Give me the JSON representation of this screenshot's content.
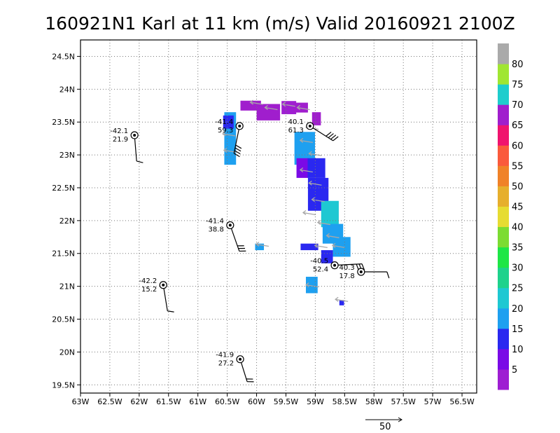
{
  "chart_data": {
    "type": "scatter",
    "title": "160921N1 Karl at 11 km (m/s) Valid 20160921  2100Z",
    "xlim": [
      -63,
      -56.25
    ],
    "ylim": [
      19.375,
      24.75
    ],
    "grid": true,
    "x_ticks": [
      {
        "v": -63,
        "label": "63W"
      },
      {
        "v": -62.5,
        "label": "62.5W"
      },
      {
        "v": -62,
        "label": "62W"
      },
      {
        "v": -61.5,
        "label": "61.5W"
      },
      {
        "v": -61,
        "label": "61W"
      },
      {
        "v": -60.5,
        "label": "60.5W"
      },
      {
        "v": -60,
        "label": "60W"
      },
      {
        "v": -59.5,
        "label": "59.5W"
      },
      {
        "v": -59,
        "label": "59W"
      },
      {
        "v": -58.5,
        "label": "58.5W"
      },
      {
        "v": -58,
        "label": "58W"
      },
      {
        "v": -57.5,
        "label": "57.5W"
      },
      {
        "v": -57,
        "label": "57W"
      },
      {
        "v": -56.5,
        "label": "56.5W"
      }
    ],
    "y_ticks": [
      {
        "v": 19.5,
        "label": "19.5N"
      },
      {
        "v": 20,
        "label": "20N"
      },
      {
        "v": 20.5,
        "label": "20.5N"
      },
      {
        "v": 21,
        "label": "21N"
      },
      {
        "v": 21.5,
        "label": "21.5N"
      },
      {
        "v": 22,
        "label": "22N"
      },
      {
        "v": 22.5,
        "label": "22.5N"
      },
      {
        "v": 23,
        "label": "23N"
      },
      {
        "v": 23.5,
        "label": "23.5N"
      },
      {
        "v": 24,
        "label": "24N"
      },
      {
        "v": 24.5,
        "label": "24.5N"
      }
    ],
    "colorbar": {
      "labels": [
        "5",
        "10",
        "15",
        "20",
        "25",
        "30",
        "35",
        "40",
        "45",
        "50",
        "55",
        "60",
        "65",
        "70",
        "75",
        "80"
      ],
      "colors": [
        "#9e1ed2",
        "#7a0ae6",
        "#2a28f0",
        "#1ea0f0",
        "#1ec8d2",
        "#1ed28c",
        "#1ee646",
        "#7cdc32",
        "#e6dc32",
        "#e6af2d",
        "#f08228",
        "#fa5a3c",
        "#f0146e",
        "#a01ecd",
        "#1ecdcd",
        "#a0e632",
        "#aaaaaa"
      ]
    },
    "observations": [
      {
        "name": "obs-1",
        "lon": -62.08,
        "lat": 23.3,
        "temp": "-42.1",
        "wind": "21.9",
        "stem": [
          3,
          37
        ]
      },
      {
        "name": "obs-2",
        "lon": -60.29,
        "lat": 23.44,
        "temp": "-41.4",
        "wind": "59.3",
        "stem": [
          -8,
          39
        ]
      },
      {
        "name": "obs-3",
        "lon": -59.09,
        "lat": 23.44,
        "temp": "40.1",
        "wind": "61.3",
        "stem": [
          33,
          21
        ]
      },
      {
        "name": "obs-4",
        "lon": -60.45,
        "lat": 21.93,
        "temp": "-41.4",
        "wind": "38.8",
        "stem": [
          13,
          37
        ]
      },
      {
        "name": "obs-5",
        "lon": -61.59,
        "lat": 21.02,
        "temp": "-42.2",
        "wind": "15.2",
        "stem": [
          6,
          37
        ]
      },
      {
        "name": "obs-6",
        "lon": -58.67,
        "lat": 21.32,
        "temp": "-40.5",
        "wind": "52.4",
        "stem": [
          39,
          -2
        ]
      },
      {
        "name": "obs-7",
        "lon": -58.22,
        "lat": 21.22,
        "temp": "40.3",
        "wind": "17.8",
        "stem": [
          37,
          0
        ]
      },
      {
        "name": "obs-8",
        "lon": -60.28,
        "lat": 19.89,
        "temp": "-41.9",
        "wind": "27.2",
        "stem": [
          10,
          32
        ]
      }
    ],
    "wind_cells": [
      {
        "lon": -60.1,
        "lat": 23.75,
        "w": 0.35,
        "h": 0.15,
        "c": 13
      },
      {
        "lon": -59.8,
        "lat": 23.65,
        "w": 0.4,
        "h": 0.25,
        "c": 13
      },
      {
        "lon": -59.45,
        "lat": 23.72,
        "w": 0.25,
        "h": 0.2,
        "c": 0
      },
      {
        "lon": -59.25,
        "lat": 23.72,
        "w": 0.25,
        "h": 0.15,
        "c": 13
      },
      {
        "lon": -58.98,
        "lat": 23.55,
        "w": 0.15,
        "h": 0.2,
        "c": 13
      },
      {
        "lon": -59.18,
        "lat": 23.1,
        "w": 0.35,
        "h": 0.5,
        "c": 3
      },
      {
        "lon": -59.22,
        "lat": 22.8,
        "w": 0.2,
        "h": 0.3,
        "c": 1
      },
      {
        "lon": -58.98,
        "lat": 22.8,
        "w": 0.3,
        "h": 0.3,
        "c": 2
      },
      {
        "lon": -58.95,
        "lat": 22.4,
        "w": 0.35,
        "h": 0.5,
        "c": 2
      },
      {
        "lon": -58.75,
        "lat": 22.1,
        "w": 0.3,
        "h": 0.4,
        "c": 4
      },
      {
        "lon": -58.7,
        "lat": 21.8,
        "w": 0.35,
        "h": 0.3,
        "c": 3
      },
      {
        "lon": -58.55,
        "lat": 21.6,
        "w": 0.3,
        "h": 0.3,
        "c": 3
      },
      {
        "lon": -59.1,
        "lat": 21.6,
        "w": 0.3,
        "h": 0.1,
        "c": 2
      },
      {
        "lon": -58.8,
        "lat": 21.45,
        "w": 0.2,
        "h": 0.2,
        "c": 2
      },
      {
        "lon": -60.45,
        "lat": 23.25,
        "w": 0.2,
        "h": 0.8,
        "c": 3
      },
      {
        "lon": -60.48,
        "lat": 23.5,
        "w": 0.18,
        "h": 0.2,
        "c": 2
      },
      {
        "lon": -59.95,
        "lat": 21.6,
        "w": 0.15,
        "h": 0.1,
        "c": 3
      },
      {
        "lon": -59.06,
        "lat": 21.02,
        "w": 0.2,
        "h": 0.25,
        "c": 3
      },
      {
        "lon": -58.55,
        "lat": 20.75,
        "w": 0.08,
        "h": 0.08,
        "c": 2
      }
    ],
    "wind_vectors": [
      [
        -60.0,
        23.78
      ],
      [
        -59.75,
        23.7
      ],
      [
        -59.45,
        23.75
      ],
      [
        -59.2,
        23.7
      ],
      [
        -59.05,
        23.4
      ],
      [
        -59.15,
        23.2
      ],
      [
        -59.0,
        23.0
      ],
      [
        -59.15,
        22.75
      ],
      [
        -59.0,
        22.55
      ],
      [
        -58.95,
        22.3
      ],
      [
        -59.1,
        22.1
      ],
      [
        -58.85,
        21.95
      ],
      [
        -58.7,
        21.75
      ],
      [
        -58.9,
        21.6
      ],
      [
        -58.6,
        21.6
      ],
      [
        -60.47,
        23.3
      ],
      [
        -60.45,
        23.05
      ],
      [
        -59.9,
        21.62
      ],
      [
        -59.05,
        21.0
      ],
      [
        -58.55,
        20.78
      ]
    ],
    "reference_vector": {
      "label": "50"
    }
  }
}
